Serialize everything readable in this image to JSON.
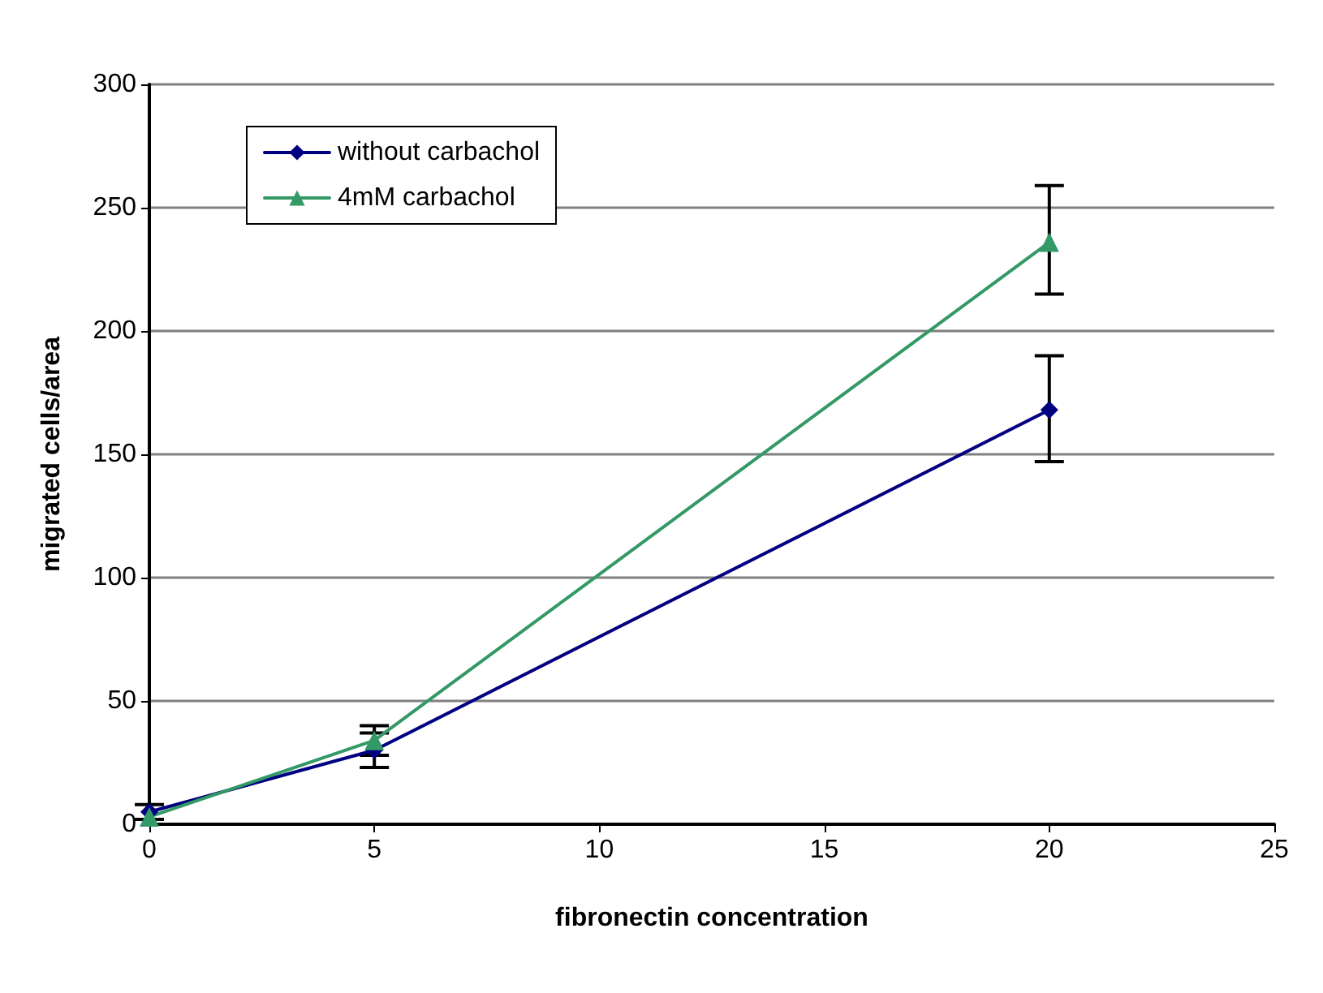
{
  "chart_data": {
    "type": "line",
    "xlabel": "fibronectin concentration",
    "ylabel": "migrated cells/area",
    "x": [
      0,
      5,
      20
    ],
    "series": [
      {
        "name": "without carbachol",
        "color": "#000080",
        "marker": "diamond",
        "values": [
          5,
          30,
          168
        ],
        "errors": [
          3,
          7,
          [
            147,
            190
          ]
        ]
      },
      {
        "name": "4mM carbachol",
        "color": "#339966",
        "marker": "triangle",
        "values": [
          3,
          34,
          236
        ],
        "errors": [
          null,
          6,
          [
            215,
            259
          ]
        ]
      }
    ],
    "xlim": [
      0,
      25
    ],
    "xticks": [
      0,
      5,
      10,
      15,
      20,
      25
    ],
    "ylim": [
      0,
      300
    ],
    "yticks": [
      0,
      50,
      100,
      150,
      200,
      250,
      300
    ],
    "grid": "y",
    "legend": "top left",
    "line_style": "solid"
  }
}
